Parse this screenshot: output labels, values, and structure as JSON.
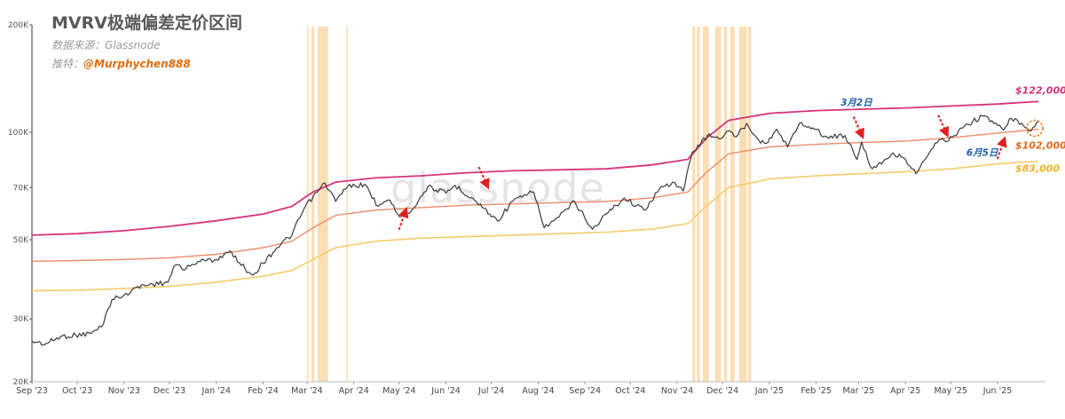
{
  "header": {
    "title": "MVRV极端偏差定价区间",
    "source_prefix": "数据来源：",
    "source": "Glassnode",
    "author_prefix": "推特：",
    "author": "@Murphychen888"
  },
  "watermark": "glassnode",
  "colors": {
    "price": "#3a3a3a",
    "upper": "#d6337a",
    "middle": "#ee8c6a",
    "lower": "#f5cb6a",
    "highlight": "#f9d9a8",
    "arrow": "#e02020",
    "circle": "#e8892c"
  },
  "chart_data": {
    "type": "line",
    "y_scale": "log",
    "ylim": [
      20000,
      200000
    ],
    "y_ticks": [
      {
        "value": 200000,
        "label": "200K"
      },
      {
        "value": 100000,
        "label": "100K"
      },
      {
        "value": 70000,
        "label": "70K"
      },
      {
        "value": 50000,
        "label": "50K"
      },
      {
        "value": 30000,
        "label": "30K"
      },
      {
        "value": 20000,
        "label": "20K"
      }
    ],
    "xlim": [
      "2023-09-01",
      "2025-06-28"
    ],
    "x_ticks": [
      {
        "date": "2023-09-01",
        "label": "Sep '23"
      },
      {
        "date": "2023-10-01",
        "label": "Oct '23"
      },
      {
        "date": "2023-11-01",
        "label": "Nov '23"
      },
      {
        "date": "2023-12-01",
        "label": "Dec '23"
      },
      {
        "date": "2024-01-01",
        "label": "Jan '24"
      },
      {
        "date": "2024-02-01",
        "label": "Feb '24"
      },
      {
        "date": "2024-03-01",
        "label": "Mar '24"
      },
      {
        "date": "2024-04-01",
        "label": "Apr '24"
      },
      {
        "date": "2024-05-01",
        "label": "May '24"
      },
      {
        "date": "2024-06-01",
        "label": "Jun '24"
      },
      {
        "date": "2024-07-01",
        "label": "Jul '24"
      },
      {
        "date": "2024-08-01",
        "label": "Aug '24"
      },
      {
        "date": "2024-09-01",
        "label": "Sep '24"
      },
      {
        "date": "2024-10-01",
        "label": "Oct '24"
      },
      {
        "date": "2024-11-01",
        "label": "Nov '24"
      },
      {
        "date": "2024-12-01",
        "label": "Dec '24"
      },
      {
        "date": "2025-01-01",
        "label": "Jan '25"
      },
      {
        "date": "2025-02-01",
        "label": "Feb '25"
      },
      {
        "date": "2025-03-01",
        "label": "Mar '25"
      },
      {
        "date": "2025-04-01",
        "label": "Apr '25"
      },
      {
        "date": "2025-05-01",
        "label": "May '25"
      },
      {
        "date": "2025-06-01",
        "label": "Jun '25"
      }
    ],
    "series": [
      {
        "key": "price",
        "points": [
          [
            "2023-09-01",
            26000
          ],
          [
            "2023-09-10",
            25500
          ],
          [
            "2023-09-20",
            26800
          ],
          [
            "2023-09-30",
            27000
          ],
          [
            "2023-10-10",
            27300
          ],
          [
            "2023-10-17",
            28500
          ],
          [
            "2023-10-24",
            34000
          ],
          [
            "2023-11-01",
            35000
          ],
          [
            "2023-11-10",
            37000
          ],
          [
            "2023-11-20",
            37500
          ],
          [
            "2023-11-30",
            38000
          ],
          [
            "2023-12-05",
            42500
          ],
          [
            "2023-12-12",
            41500
          ],
          [
            "2023-12-20",
            43500
          ],
          [
            "2024-01-01",
            44000
          ],
          [
            "2024-01-10",
            46500
          ],
          [
            "2024-01-20",
            41500
          ],
          [
            "2024-01-25",
            39800
          ],
          [
            "2024-02-01",
            43000
          ],
          [
            "2024-02-10",
            47500
          ],
          [
            "2024-02-20",
            51500
          ],
          [
            "2024-02-28",
            61000
          ],
          [
            "2024-03-05",
            66000
          ],
          [
            "2024-03-13",
            72000
          ],
          [
            "2024-03-20",
            64000
          ],
          [
            "2024-03-28",
            70500
          ],
          [
            "2024-04-08",
            71500
          ],
          [
            "2024-04-17",
            62000
          ],
          [
            "2024-04-25",
            64500
          ],
          [
            "2024-05-01",
            58000
          ],
          [
            "2024-05-10",
            61000
          ],
          [
            "2024-05-20",
            70500
          ],
          [
            "2024-06-01",
            67500
          ],
          [
            "2024-06-07",
            71000
          ],
          [
            "2024-06-20",
            64500
          ],
          [
            "2024-07-05",
            56500
          ],
          [
            "2024-07-15",
            64000
          ],
          [
            "2024-07-29",
            68000
          ],
          [
            "2024-08-05",
            54000
          ],
          [
            "2024-08-15",
            58000
          ],
          [
            "2024-08-25",
            64000
          ],
          [
            "2024-09-06",
            53500
          ],
          [
            "2024-09-15",
            59000
          ],
          [
            "2024-09-27",
            65500
          ],
          [
            "2024-10-10",
            60500
          ],
          [
            "2024-10-20",
            69000
          ],
          [
            "2024-10-29",
            72500
          ],
          [
            "2024-11-05",
            68500
          ],
          [
            "2024-11-11",
            88000
          ],
          [
            "2024-11-21",
            98000
          ],
          [
            "2024-12-01",
            96500
          ],
          [
            "2024-12-05",
            101000
          ],
          [
            "2024-12-10",
            97000
          ],
          [
            "2024-12-17",
            106000
          ],
          [
            "2024-12-25",
            95000
          ],
          [
            "2024-12-31",
            93500
          ],
          [
            "2025-01-06",
            102000
          ],
          [
            "2025-01-13",
            91000
          ],
          [
            "2025-01-21",
            106000
          ],
          [
            "2025-01-31",
            102000
          ],
          [
            "2025-02-08",
            97000
          ],
          [
            "2025-02-20",
            98000
          ],
          [
            "2025-02-28",
            84000
          ],
          [
            "2025-03-03",
            94000
          ],
          [
            "2025-03-10",
            79000
          ],
          [
            "2025-03-24",
            87500
          ],
          [
            "2025-04-01",
            84000
          ],
          [
            "2025-04-08",
            76500
          ],
          [
            "2025-04-15",
            85000
          ],
          [
            "2025-04-22",
            93500
          ],
          [
            "2025-05-02",
            97000
          ],
          [
            "2025-05-10",
            104000
          ],
          [
            "2025-05-22",
            111000
          ],
          [
            "2025-06-01",
            104500
          ],
          [
            "2025-06-05",
            101500
          ],
          [
            "2025-06-10",
            109500
          ],
          [
            "2025-06-17",
            106000
          ],
          [
            "2025-06-22",
            101000
          ],
          [
            "2025-06-28",
            107000
          ]
        ]
      },
      {
        "key": "upper",
        "points": [
          [
            "2023-09-01",
            51500
          ],
          [
            "2023-10-01",
            52000
          ],
          [
            "2023-11-01",
            53000
          ],
          [
            "2023-12-01",
            54500
          ],
          [
            "2024-01-01",
            56500
          ],
          [
            "2024-02-01",
            59000
          ],
          [
            "2024-02-20",
            62000
          ],
          [
            "2024-03-05",
            68000
          ],
          [
            "2024-03-20",
            72500
          ],
          [
            "2024-04-15",
            74500
          ],
          [
            "2024-05-15",
            75500
          ],
          [
            "2024-06-15",
            77000
          ],
          [
            "2024-07-15",
            78000
          ],
          [
            "2024-08-15",
            78500
          ],
          [
            "2024-09-15",
            79000
          ],
          [
            "2024-10-15",
            81000
          ],
          [
            "2024-11-08",
            84000
          ],
          [
            "2024-11-20",
            96000
          ],
          [
            "2024-12-05",
            108000
          ],
          [
            "2025-01-01",
            113000
          ],
          [
            "2025-02-01",
            115000
          ],
          [
            "2025-03-01",
            116000
          ],
          [
            "2025-04-01",
            117000
          ],
          [
            "2025-05-01",
            118500
          ],
          [
            "2025-06-01",
            120000
          ],
          [
            "2025-06-28",
            122000
          ]
        ]
      },
      {
        "key": "middle",
        "points": [
          [
            "2023-09-01",
            43500
          ],
          [
            "2023-10-01",
            43700
          ],
          [
            "2023-11-01",
            44000
          ],
          [
            "2023-12-01",
            44500
          ],
          [
            "2024-01-01",
            45500
          ],
          [
            "2024-02-01",
            47500
          ],
          [
            "2024-02-20",
            49500
          ],
          [
            "2024-03-05",
            54000
          ],
          [
            "2024-03-20",
            58500
          ],
          [
            "2024-04-15",
            60500
          ],
          [
            "2024-05-15",
            61500
          ],
          [
            "2024-06-15",
            62500
          ],
          [
            "2024-07-15",
            63000
          ],
          [
            "2024-08-15",
            63500
          ],
          [
            "2024-09-15",
            64000
          ],
          [
            "2024-10-15",
            65500
          ],
          [
            "2024-11-08",
            68000
          ],
          [
            "2024-11-20",
            77000
          ],
          [
            "2024-12-05",
            87000
          ],
          [
            "2025-01-01",
            91000
          ],
          [
            "2025-02-01",
            92500
          ],
          [
            "2025-03-01",
            93500
          ],
          [
            "2025-04-01",
            94500
          ],
          [
            "2025-05-01",
            96500
          ],
          [
            "2025-06-01",
            99500
          ],
          [
            "2025-06-28",
            102000
          ]
        ]
      },
      {
        "key": "lower",
        "points": [
          [
            "2023-09-01",
            36000
          ],
          [
            "2023-10-01",
            36100
          ],
          [
            "2023-11-01",
            36500
          ],
          [
            "2023-12-01",
            37000
          ],
          [
            "2024-01-01",
            38000
          ],
          [
            "2024-02-01",
            39500
          ],
          [
            "2024-02-20",
            41000
          ],
          [
            "2024-03-05",
            44000
          ],
          [
            "2024-03-20",
            47500
          ],
          [
            "2024-04-15",
            49500
          ],
          [
            "2024-05-15",
            50500
          ],
          [
            "2024-06-15",
            51000
          ],
          [
            "2024-07-15",
            51500
          ],
          [
            "2024-08-15",
            52000
          ],
          [
            "2024-09-15",
            52500
          ],
          [
            "2024-10-15",
            53500
          ],
          [
            "2024-11-08",
            55500
          ],
          [
            "2024-11-20",
            62000
          ],
          [
            "2024-12-05",
            70000
          ],
          [
            "2025-01-01",
            74000
          ],
          [
            "2025-02-01",
            75500
          ],
          [
            "2025-03-01",
            76500
          ],
          [
            "2025-04-01",
            77500
          ],
          [
            "2025-05-01",
            79000
          ],
          [
            "2025-06-01",
            81500
          ],
          [
            "2025-06-28",
            83000
          ]
        ]
      }
    ],
    "highlight_spans": [
      [
        "2024-03-01",
        "2024-03-02"
      ],
      [
        "2024-03-04",
        "2024-03-06"
      ],
      [
        "2024-03-08",
        "2024-03-15"
      ],
      [
        "2024-03-27",
        "2024-03-28"
      ],
      [
        "2024-11-11",
        "2024-11-13"
      ],
      [
        "2024-11-14",
        "2024-11-16"
      ],
      [
        "2024-11-18",
        "2024-11-22"
      ],
      [
        "2024-11-26",
        "2024-11-30"
      ],
      [
        "2024-12-02",
        "2024-12-04"
      ],
      [
        "2024-12-06",
        "2024-12-09"
      ],
      [
        "2024-12-12",
        "2024-12-17"
      ],
      [
        "2024-12-18",
        "2024-12-20"
      ]
    ],
    "band_labels": [
      {
        "key": "upper",
        "text": "$122,000",
        "date": "2025-06-28",
        "value": 122000
      },
      {
        "key": "middle",
        "text": "$102,000",
        "date": "2025-06-28",
        "value": 102000
      },
      {
        "key": "lower",
        "text": "$83,000",
        "date": "2025-06-28",
        "value": 83000
      }
    ],
    "annotations": [
      {
        "text": "3月2日",
        "date": "2025-03-02",
        "value": 120000
      },
      {
        "text": "6月5日",
        "date": "2025-06-05",
        "value": 87000
      }
    ],
    "arrows": [
      {
        "direction": "up",
        "date": "2024-05-05",
        "value": 60500
      },
      {
        "direction": "down",
        "date": "2024-06-28",
        "value": 70500
      },
      {
        "direction": "down",
        "date": "2025-03-03",
        "value": 97500
      },
      {
        "direction": "down",
        "date": "2025-04-28",
        "value": 98500
      },
      {
        "direction": "up",
        "date": "2025-06-05",
        "value": 95500
      }
    ],
    "circle_marker": {
      "date": "2025-06-28",
      "value": 102000
    }
  }
}
